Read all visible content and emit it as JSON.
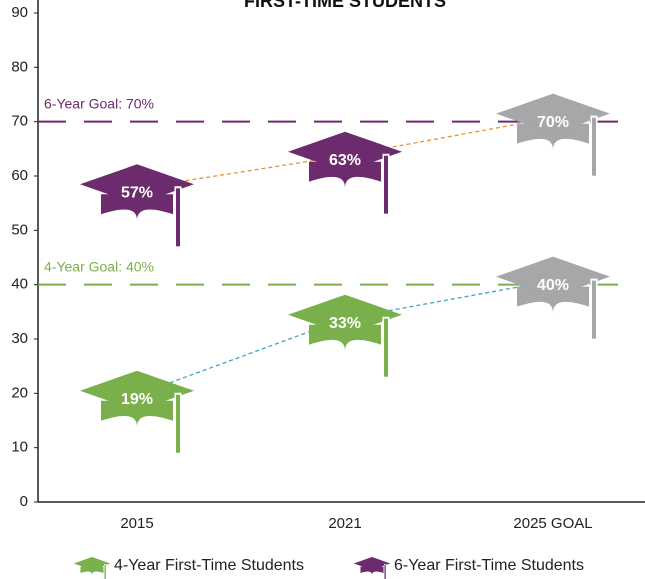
{
  "chart_data": {
    "type": "cap-line",
    "title": "FIRST-TIME STUDENTS",
    "categories": [
      "2015",
      "2021",
      "2025 GOAL"
    ],
    "series": [
      {
        "name": "4-Year First-Time Students",
        "color": "#79b04b",
        "line_color": "#3aa6c4",
        "values": [
          19,
          33,
          40
        ],
        "value_labels": [
          "19%",
          "33%",
          "40%"
        ]
      },
      {
        "name": "6-Year First-Time Students",
        "color": "#6b2b6d",
        "line_color": "#f0902a",
        "values": [
          57,
          63,
          70
        ],
        "value_labels": [
          "57%",
          "63%",
          "70%"
        ]
      }
    ],
    "goal_color": "#a7a7a9",
    "annotations": [
      {
        "text": "6-Year Goal: 70%",
        "value": 70,
        "color": "#6b2b6d"
      },
      {
        "text": "4-Year Goal: 40%",
        "value": 40,
        "color": "#79b04b"
      }
    ],
    "ylim": [
      0,
      90
    ],
    "yticks": [
      0,
      10,
      20,
      30,
      40,
      50,
      60,
      70,
      80,
      90
    ]
  }
}
